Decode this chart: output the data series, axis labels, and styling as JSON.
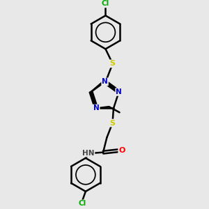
{
  "background_color": "#e8e8e8",
  "atom_colors": {
    "C": "#000000",
    "N": "#0000cc",
    "S": "#cccc00",
    "O": "#ff0000",
    "Cl": "#00aa00",
    "H": "#444444"
  },
  "bond_color": "#000000",
  "bond_width": 1.8,
  "figsize": [
    3.0,
    3.0
  ],
  "dpi": 100,
  "xlim": [
    0,
    10
  ],
  "ylim": [
    0,
    10
  ]
}
